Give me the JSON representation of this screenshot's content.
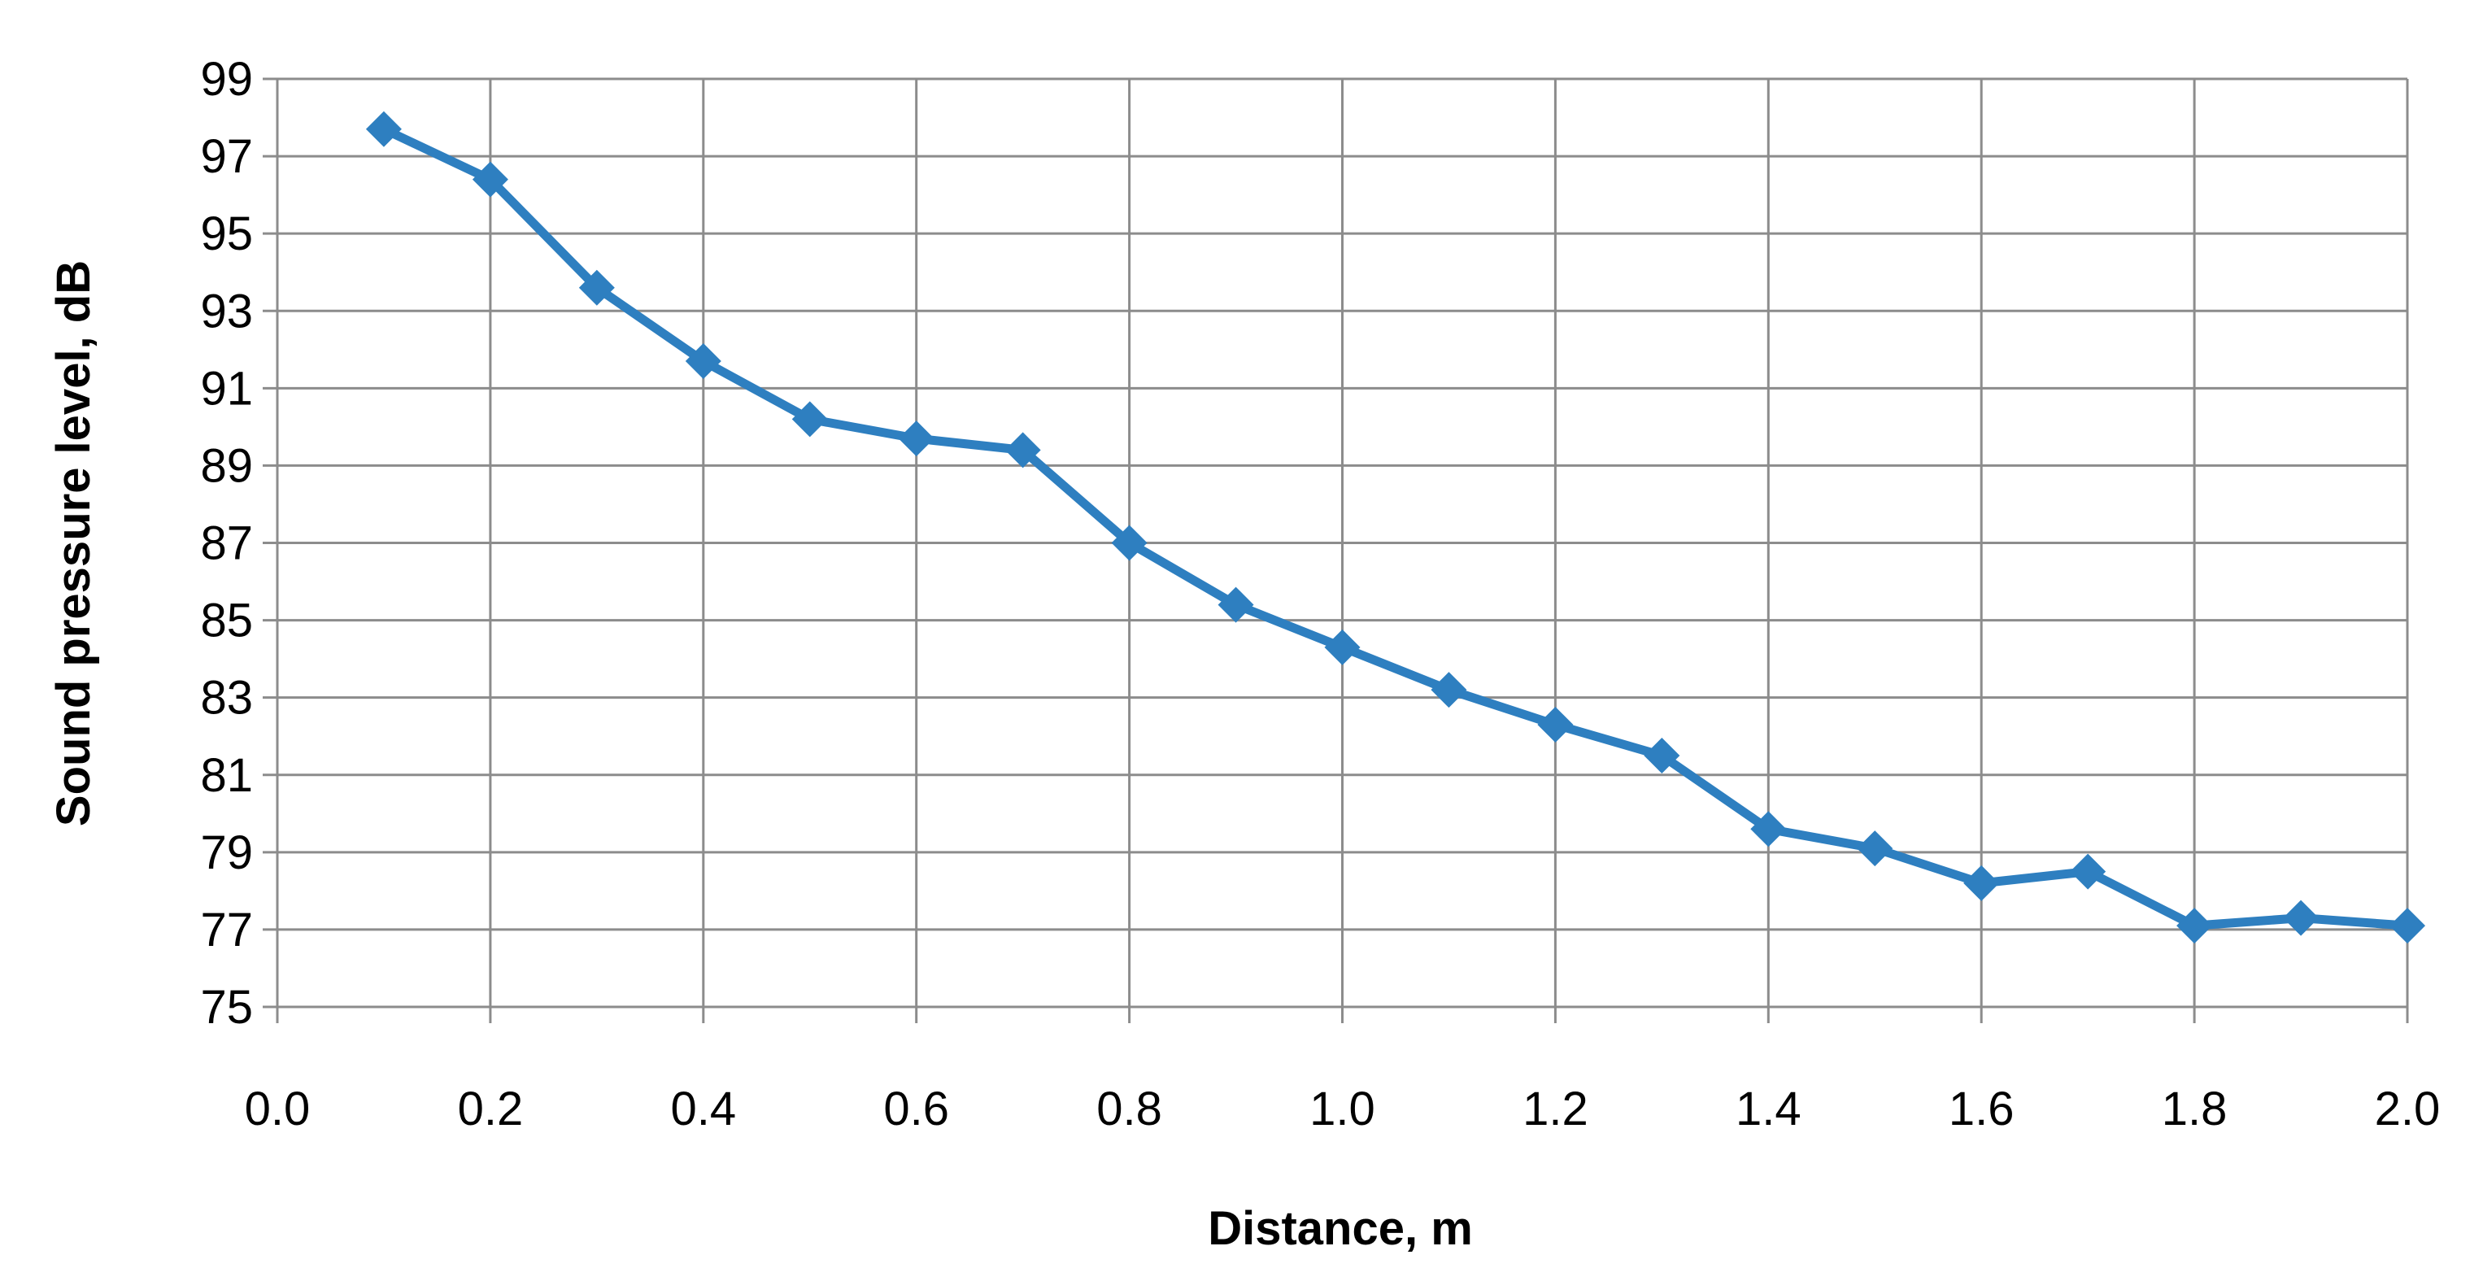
{
  "chart_data": {
    "type": "line",
    "title": "",
    "xlabel": "Distance, m",
    "ylabel": "Sound pressure level, dB",
    "xlim": [
      0.0,
      2.0
    ],
    "ylim": [
      75,
      99
    ],
    "x_ticks": [
      "0.0",
      "0.2",
      "0.4",
      "0.6",
      "0.8",
      "1.0",
      "1.2",
      "1.4",
      "1.6",
      "1.8",
      "2.0"
    ],
    "y_ticks": [
      "75",
      "77",
      "79",
      "81",
      "83",
      "85",
      "87",
      "89",
      "91",
      "93",
      "95",
      "97",
      "99"
    ],
    "grid": true,
    "legend": "none",
    "marker": "diamond",
    "series_color": "#2e7fc0",
    "gridline_color": "#8c8c8c",
    "series": [
      {
        "x": [
          0.1,
          0.2,
          0.3,
          0.4,
          0.5,
          0.6,
          0.7,
          0.8,
          0.9,
          1.0,
          1.1,
          1.2,
          1.3,
          1.4,
          1.5,
          1.6,
          1.7,
          1.8,
          1.9,
          2.0
        ],
        "values": [
          97.7,
          96.4,
          93.6,
          91.7,
          90.2,
          89.7,
          89.4,
          87.0,
          85.4,
          84.3,
          83.2,
          82.3,
          81.5,
          79.6,
          79.1,
          78.2,
          78.5,
          77.1,
          77.3,
          77.1
        ]
      }
    ]
  }
}
